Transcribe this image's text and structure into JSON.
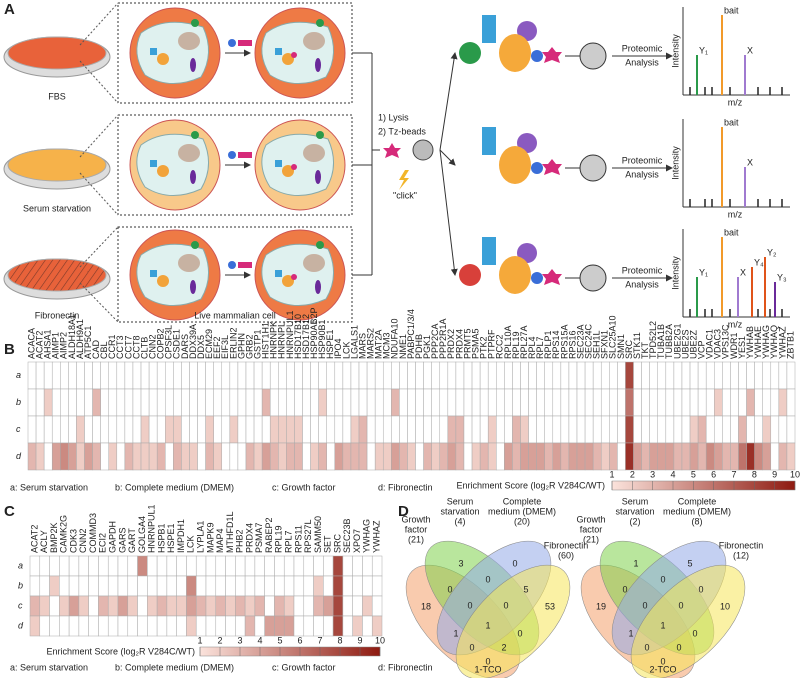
{
  "panel_a": {
    "letter": "A",
    "conditions": [
      "FBS",
      "Serum starvation",
      "Fibronectin"
    ],
    "steps": [
      "1) Lysis",
      "2) Tz-beads"
    ],
    "click": "\"click\"",
    "analysis": [
      "Proteomic",
      "Analysis"
    ],
    "cell_label": "Live mammalian cell",
    "intensity": "Intensity",
    "mz": "m/z",
    "spectra": [
      [
        "Y₁",
        "bait",
        "X"
      ],
      [
        "bait",
        "X"
      ],
      [
        "Y₁",
        "bait",
        "X",
        "Y₄",
        "Y₂",
        "Y₃"
      ]
    ]
  },
  "panel_b": {
    "letter": "B",
    "genes": [
      "ACACA",
      "ACAT2",
      "AHSA1",
      "AIMP1",
      "AIMP2",
      "ALDH18A1",
      "ALDH9A1",
      "ATP5C1",
      "CAD",
      "CBL",
      "CCR1",
      "CCT3",
      "CCT7",
      "CCT8",
      "CLTB",
      "CNN2",
      "COPB2",
      "CPSF3L",
      "CSDE1",
      "DARS",
      "DDX39A",
      "DDX5",
      "ECM29",
      "EEF2",
      "EIF3L",
      "ERLIN2",
      "GPHN",
      "GRB2",
      "GSTP1",
      "HIST1H1",
      "HNRNPK",
      "HNRNPL",
      "HNRNPUL1",
      "HSD17B10",
      "HSD17B12",
      "HSP90AB2P",
      "HSP90B1",
      "HSPE1",
      "IPO4",
      "LCK",
      "LGALS1",
      "MARS",
      "MARS2",
      "MAT2A",
      "MCM3",
      "NDUFA10",
      "NME1",
      "PABPC1/3/4",
      "PDHB",
      "PGK1",
      "PPP2CA",
      "PPP2R1A",
      "PRDX2",
      "PRDX4",
      "PRMT5",
      "PSMA5",
      "PTK2",
      "PTPRF",
      "RCC2",
      "RPL10A",
      "RPL19",
      "RPL27A",
      "RPL4",
      "RPL7",
      "RPLP1",
      "RPS14",
      "RPS15A",
      "RPS16",
      "SEC23A",
      "SEC24C",
      "SEH1L",
      "SFXN1",
      "SLC25A10",
      "SMN1",
      "SRC",
      "STK11",
      "TKT",
      "TPD52L2",
      "TUBA1B",
      "TUBB2A",
      "UBE2G1",
      "UBE2S",
      "UBE2Z",
      "VCP",
      "VDAC1",
      "VDAC3",
      "VPS13C",
      "WDR1",
      "YES1",
      "YWHAB",
      "YWHAE",
      "YWHAG",
      "YWHAQ",
      "YWHAZ",
      "ZBTB1"
    ],
    "rows": [
      {
        "name": "a",
        "values": [
          null,
          null,
          null,
          null,
          null,
          null,
          null,
          null,
          null,
          null,
          null,
          null,
          null,
          null,
          null,
          null,
          null,
          null,
          null,
          null,
          null,
          null,
          null,
          null,
          null,
          null,
          null,
          null,
          null,
          null,
          null,
          null,
          null,
          null,
          null,
          null,
          null,
          null,
          null,
          null,
          null,
          null,
          null,
          null,
          null,
          null,
          null,
          null,
          null,
          null,
          null,
          null,
          null,
          null,
          null,
          null,
          null,
          null,
          null,
          null,
          null,
          null,
          null,
          null,
          null,
          null,
          null,
          null,
          null,
          null,
          null,
          null,
          null,
          null,
          8,
          null,
          null,
          null,
          null,
          null,
          null,
          null,
          null,
          null,
          null,
          null,
          null,
          null,
          null,
          null,
          null,
          null,
          null,
          null,
          null
        ]
      },
      {
        "name": "b",
        "values": [
          null,
          null,
          2,
          null,
          null,
          null,
          null,
          null,
          3,
          null,
          null,
          null,
          null,
          null,
          null,
          null,
          null,
          null,
          null,
          null,
          null,
          null,
          null,
          null,
          null,
          null,
          null,
          null,
          null,
          3,
          null,
          null,
          null,
          null,
          null,
          null,
          2,
          null,
          null,
          null,
          null,
          null,
          null,
          null,
          null,
          3,
          null,
          null,
          null,
          null,
          null,
          null,
          null,
          null,
          null,
          null,
          null,
          null,
          null,
          null,
          null,
          null,
          null,
          null,
          null,
          null,
          null,
          null,
          null,
          null,
          null,
          null,
          null,
          null,
          6,
          null,
          null,
          null,
          null,
          null,
          null,
          null,
          null,
          null,
          null,
          2,
          null,
          null,
          null,
          3,
          null,
          null,
          null,
          2,
          null
        ]
      },
      {
        "name": "c",
        "values": [
          null,
          null,
          null,
          null,
          null,
          null,
          2,
          null,
          null,
          null,
          null,
          null,
          null,
          null,
          2,
          null,
          null,
          2,
          2,
          null,
          null,
          null,
          2,
          null,
          null,
          2,
          null,
          null,
          null,
          null,
          2,
          2,
          2,
          2,
          null,
          null,
          null,
          null,
          null,
          null,
          2,
          3,
          null,
          null,
          null,
          null,
          null,
          null,
          null,
          null,
          null,
          null,
          3,
          3,
          null,
          null,
          null,
          2,
          null,
          null,
          3,
          2,
          null,
          null,
          null,
          null,
          null,
          null,
          null,
          null,
          null,
          null,
          null,
          null,
          8,
          null,
          null,
          null,
          null,
          null,
          null,
          null,
          2,
          3,
          null,
          null,
          null,
          null,
          3,
          null,
          null,
          2,
          null,
          null,
          null
        ]
      },
      {
        "name": "d",
        "values": [
          3,
          2,
          null,
          4,
          5,
          4,
          2,
          4,
          3,
          null,
          2,
          null,
          3,
          2,
          2,
          2,
          3,
          null,
          3,
          2,
          2,
          null,
          3,
          2,
          null,
          null,
          null,
          3,
          2,
          4,
          3,
          2,
          3,
          3,
          null,
          2,
          3,
          null,
          4,
          3,
          3,
          3,
          null,
          2,
          2,
          4,
          3,
          2,
          null,
          3,
          2,
          3,
          4,
          3,
          null,
          2,
          3,
          2,
          null,
          4,
          3,
          4,
          4,
          4,
          3,
          4,
          3,
          4,
          4,
          4,
          3,
          2,
          3,
          null,
          9,
          4,
          3,
          4,
          4,
          4,
          3,
          3,
          4,
          3,
          5,
          4,
          3,
          3,
          6,
          9,
          5,
          4,
          null,
          3,
          2
        ]
      }
    ],
    "legend": [
      "a: Serum starvation",
      "b: Complete medium (DMEM)",
      "c: Growth factor",
      "d: Fibronectin"
    ],
    "colorbar": {
      "label": "Enrichment Score (log₂R V284C/WT)",
      "ticks": [
        1,
        2,
        3,
        4,
        5,
        6,
        7,
        8,
        9,
        10
      ]
    }
  },
  "panel_c": {
    "letter": "C",
    "genes": [
      "ACAT2",
      "ACLY",
      "BMP2K",
      "CAMK2G",
      "CDK3",
      "CNN2",
      "COMMD3",
      "ECI2",
      "GAPDH",
      "GARS",
      "GART",
      "GOLGA4",
      "HNRNPUL1",
      "HSPB1",
      "HSPE1",
      "IMPDH1",
      "LCK",
      "LYPLA1",
      "MAPK9",
      "MAP4",
      "MTHFD1L",
      "PHB2",
      "PRDX4",
      "PSMA7",
      "RABEP2",
      "RPL19",
      "RPL7",
      "RPS11",
      "RPS27L",
      "SAMM50",
      "SET",
      "SRC",
      "SEC23B",
      "XPO7",
      "YWHAG",
      "YWHAZ"
    ],
    "rows": [
      {
        "name": "a",
        "values": [
          null,
          null,
          null,
          null,
          null,
          null,
          null,
          null,
          null,
          null,
          null,
          5,
          null,
          null,
          null,
          null,
          null,
          null,
          null,
          null,
          null,
          null,
          null,
          null,
          null,
          null,
          null,
          null,
          null,
          null,
          null,
          8,
          null,
          null,
          null,
          null
        ]
      },
      {
        "name": "b",
        "values": [
          null,
          null,
          2,
          null,
          null,
          null,
          null,
          null,
          null,
          null,
          null,
          null,
          null,
          null,
          null,
          null,
          5,
          null,
          null,
          null,
          null,
          null,
          null,
          null,
          null,
          null,
          null,
          null,
          null,
          2,
          null,
          8,
          null,
          null,
          null,
          null
        ]
      },
      {
        "name": "c",
        "values": [
          3,
          2,
          null,
          2,
          4,
          2,
          null,
          3,
          2,
          4,
          2,
          null,
          2,
          3,
          2,
          2,
          4,
          3,
          2,
          3,
          2,
          3,
          2,
          3,
          null,
          3,
          2,
          null,
          null,
          3,
          4,
          8,
          null,
          null,
          2,
          null
        ]
      },
      {
        "name": "d",
        "values": [
          2,
          null,
          null,
          null,
          null,
          null,
          null,
          null,
          null,
          null,
          null,
          null,
          null,
          null,
          null,
          null,
          2,
          null,
          null,
          null,
          null,
          null,
          3,
          null,
          4,
          4,
          4,
          null,
          null,
          null,
          null,
          8,
          null,
          2,
          null,
          2
        ]
      }
    ],
    "legend": [
      "a: Serum starvation",
      "b: Complete medium (DMEM)",
      "c: Growth factor",
      "d: Fibronectin"
    ],
    "colorbar": {
      "label": "Enrichment Score (log₂R V284C/WT)",
      "ticks": [
        1,
        2,
        3,
        4,
        5,
        6,
        7,
        8,
        9,
        10
      ]
    }
  },
  "panel_d": {
    "letter": "D",
    "venns": [
      {
        "title": "1-TCO",
        "sets": [
          {
            "name": [
              "Growth",
              "factor"
            ],
            "count": "(21)"
          },
          {
            "name": [
              "Serum",
              "starvation"
            ],
            "count": "(4)"
          },
          {
            "name": [
              "Complete",
              "medium (DMEM)"
            ],
            "count": "(20)"
          },
          {
            "name": [
              "Fibronectin"
            ],
            "count": "(60)"
          }
        ],
        "regions": [
          18,
          3,
          0,
          53,
          0,
          0,
          5,
          1,
          0,
          0,
          0,
          0,
          0,
          2,
          1
        ]
      },
      {
        "title": "2-TCO",
        "sets": [
          {
            "name": [
              "Growth",
              "factor"
            ],
            "count": "(21)"
          },
          {
            "name": [
              "Serum",
              "starvation"
            ],
            "count": "(2)"
          },
          {
            "name": [
              "Complete",
              "medium (DMEM)"
            ],
            "count": "(8)"
          },
          {
            "name": [
              "Fibronectin"
            ],
            "count": "(12)"
          }
        ],
        "regions": [
          19,
          1,
          5,
          10,
          0,
          0,
          0,
          1,
          0,
          0,
          0,
          0,
          0,
          0,
          1
        ]
      }
    ]
  }
}
